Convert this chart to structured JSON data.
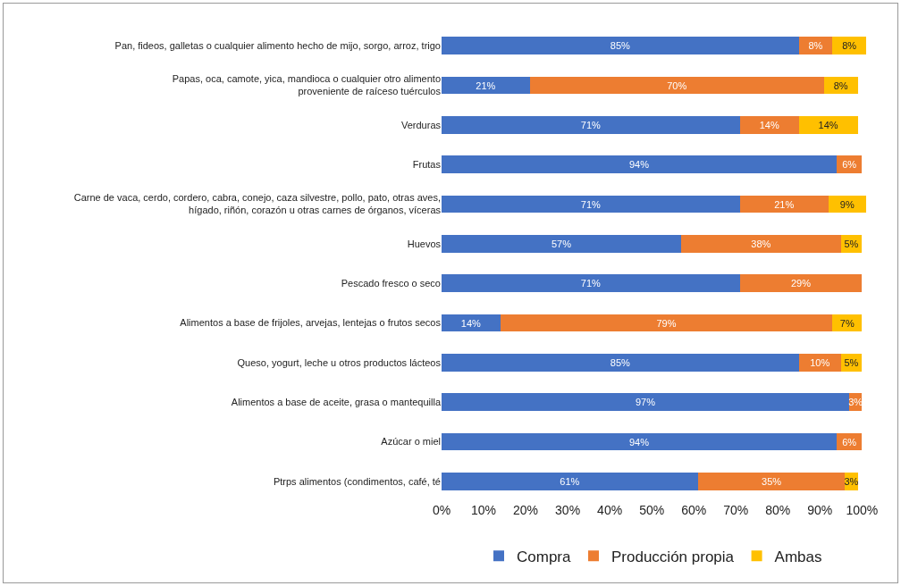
{
  "chart_data": {
    "type": "bar",
    "orientation": "horizontal",
    "stacked": true,
    "categories": [
      "Pan, fideos, galletas o cualquier alimento hecho de mijo, sorgo, arroz, trigo",
      "Papas, oca, camote, yica, mandioca o cualquier otro alimento\nproveniente de raíceso tuérculos",
      "Verduras",
      "Frutas",
      "Carne de vaca, cerdo, cordero, cabra, conejo, caza silvestre, pollo, pato, otras aves,\nhígado, riñón, corazón u otras carnes de órganos, víceras",
      "Huevos",
      "Pescado fresco o seco",
      "Alimentos a base de frijoles, arvejas, lentejas o frutos secos",
      "Queso, yogurt, leche u otros productos lácteos",
      "Alimentos a base de aceite, grasa o mantequilla",
      "Azúcar o miel",
      "Ptrps alimentos (condimentos, café, té"
    ],
    "series": [
      {
        "name": "Compra",
        "color": "#4472c4",
        "values": [
          85,
          21,
          71,
          94,
          71,
          57,
          71,
          14,
          85,
          97,
          94,
          61
        ],
        "value_labels": [
          "85%",
          "21%",
          "71%",
          "94%",
          "71%",
          "57%",
          "71%",
          "14%",
          "85%",
          "97%",
          "94%",
          "61%"
        ]
      },
      {
        "name": "Producción propia",
        "color": "#ed7d31",
        "values": [
          8,
          70,
          14,
          6,
          21,
          38,
          29,
          79,
          10,
          3,
          6,
          35
        ],
        "value_labels": [
          "8%",
          "70%",
          "14%",
          "6%",
          "21%",
          "38%",
          "29%",
          "79%",
          "10%",
          "3%",
          "6%",
          "35%"
        ]
      },
      {
        "name": "Ambas",
        "color": "#ffc000",
        "values": [
          8,
          8,
          14,
          null,
          9,
          5,
          null,
          7,
          5,
          null,
          null,
          3
        ],
        "value_labels": [
          "8%",
          "8%",
          "14%",
          null,
          "9%",
          "5%",
          null,
          "7%",
          "5%",
          null,
          null,
          "3%"
        ]
      }
    ],
    "xlim": [
      0,
      101
    ],
    "xticks": [
      {
        "value": 0,
        "label": "0%"
      },
      {
        "value": 10,
        "label": "10%"
      },
      {
        "value": 20,
        "label": "20%"
      },
      {
        "value": 30,
        "label": "30%"
      },
      {
        "value": 40,
        "label": "40%"
      },
      {
        "value": 50,
        "label": "50%"
      },
      {
        "value": 60,
        "label": "60%"
      },
      {
        "value": 70,
        "label": "70%"
      },
      {
        "value": 80,
        "label": "80%"
      },
      {
        "value": 90,
        "label": "90%"
      },
      {
        "value": 100,
        "label": "100%"
      }
    ],
    "grid": false,
    "legend": "bottom"
  }
}
